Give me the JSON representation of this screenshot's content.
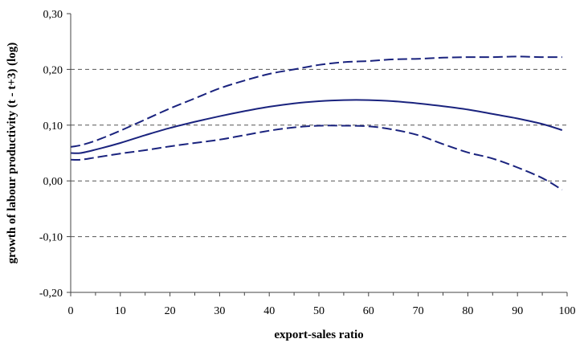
{
  "chart_data": {
    "type": "line",
    "title": "",
    "xlabel": "export-sales ratio",
    "ylabel": "growth of labour productivity (t - t+3) (log)",
    "xlim": [
      0,
      100
    ],
    "ylim": [
      -0.2,
      0.3
    ],
    "x_ticks": [
      0,
      10,
      20,
      30,
      40,
      50,
      60,
      70,
      80,
      90,
      100
    ],
    "x_tick_labels": [
      "0",
      "10",
      "20",
      "30",
      "40",
      "50",
      "60",
      "70",
      "80",
      "90",
      "100"
    ],
    "y_ticks": [
      -0.2,
      -0.1,
      0.0,
      0.1,
      0.2,
      0.3
    ],
    "y_tick_labels": [
      "-0,20",
      "-0,10",
      "0,00",
      "0,10",
      "0,20",
      "0,30"
    ],
    "grid": "horizontal dashed",
    "colors": {
      "line": "#1a237e",
      "grid": "#555555",
      "axis": "#444444"
    },
    "series": [
      {
        "style": "solid",
        "x": [
          0,
          2,
          5,
          10,
          15,
          20,
          25,
          30,
          35,
          40,
          45,
          50,
          55,
          60,
          65,
          70,
          75,
          80,
          85,
          90,
          95,
          99
        ],
        "values": [
          0.05,
          0.05,
          0.056,
          0.068,
          0.082,
          0.095,
          0.106,
          0.116,
          0.125,
          0.133,
          0.139,
          0.143,
          0.145,
          0.145,
          0.143,
          0.139,
          0.134,
          0.128,
          0.12,
          0.112,
          0.102,
          0.091
        ]
      },
      {
        "style": "dashed",
        "x": [
          0,
          2,
          5,
          10,
          15,
          20,
          25,
          30,
          35,
          40,
          45,
          50,
          55,
          60,
          65,
          70,
          75,
          80,
          85,
          90,
          95,
          99
        ],
        "values": [
          0.061,
          0.064,
          0.072,
          0.09,
          0.11,
          0.13,
          0.148,
          0.166,
          0.18,
          0.192,
          0.2,
          0.208,
          0.213,
          0.215,
          0.218,
          0.219,
          0.221,
          0.222,
          0.222,
          0.223,
          0.222,
          0.222
        ]
      },
      {
        "style": "dashed",
        "x": [
          0,
          2,
          5,
          10,
          15,
          20,
          25,
          30,
          35,
          40,
          45,
          50,
          55,
          60,
          65,
          70,
          75,
          80,
          85,
          90,
          95,
          99
        ],
        "values": [
          0.038,
          0.038,
          0.042,
          0.049,
          0.055,
          0.062,
          0.068,
          0.074,
          0.082,
          0.09,
          0.096,
          0.099,
          0.099,
          0.098,
          0.092,
          0.082,
          0.066,
          0.051,
          0.04,
          0.024,
          0.005,
          -0.016
        ]
      }
    ]
  }
}
